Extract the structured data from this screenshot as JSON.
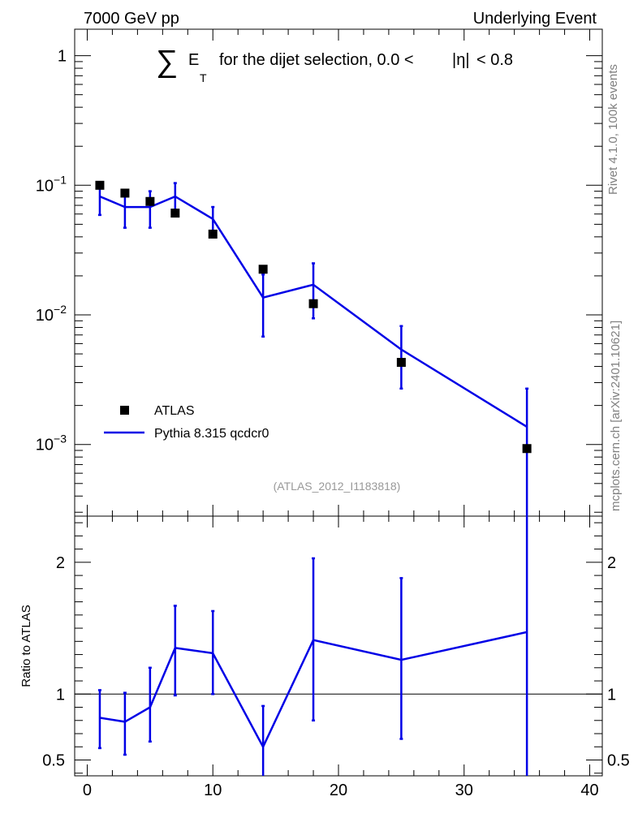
{
  "header": {
    "left": "7000 GeV pp",
    "right": "Underlying Event"
  },
  "side_labels": {
    "rivet": "Rivet 4.1.0,  100k events",
    "mcplots": "mcplots.cern.ch [arXiv:2401.10621]"
  },
  "chart_data": [
    {
      "type": "scatter",
      "panel": "main",
      "title_sum_symbol": "∑",
      "title_var": "E",
      "title_sub": "T",
      "title_rest": "for the dijet selection, 0.0 <",
      "title_eta": "|η|",
      "title_end": "< 0.8",
      "watermark": "(ATLAS_2012_I1183818)",
      "yscale": "log",
      "ylim": [
        0.00028,
        1.6
      ],
      "xlim": [
        -1,
        41
      ],
      "y_tick_labels": [
        {
          "value": 1,
          "base": "1",
          "exp": ""
        },
        {
          "value": 0.1,
          "base": "10",
          "exp": "−1"
        },
        {
          "value": 0.01,
          "base": "10",
          "exp": "−2"
        },
        {
          "value": 0.001,
          "base": "10",
          "exp": "−3"
        }
      ],
      "legend_position": "lower-left",
      "series": [
        {
          "name": "ATLAS",
          "style": "markers",
          "color": "#000000",
          "x": [
            1,
            3,
            5,
            7,
            10,
            14,
            18,
            25,
            35
          ],
          "y": [
            0.1,
            0.087,
            0.075,
            0.061,
            0.042,
            0.0225,
            0.0122,
            0.0043,
            0.00093
          ]
        },
        {
          "name": "Pythia 8.315 qcdcr0",
          "style": "line",
          "color": "#0000e6",
          "x": [
            1,
            3,
            5,
            7,
            10,
            14,
            18,
            25,
            35
          ],
          "y": [
            0.082,
            0.068,
            0.068,
            0.082,
            0.055,
            0.0136,
            0.0171,
            0.0054,
            0.00137
          ],
          "yerr_low": [
            0.059,
            0.047,
            0.047,
            0.061,
            0.042,
            0.0068,
            0.0094,
            0.0027,
            0.00022
          ],
          "yerr_high": [
            0.1,
            0.087,
            0.09,
            0.104,
            0.068,
            0.0205,
            0.025,
            0.0082,
            0.0027
          ]
        }
      ]
    },
    {
      "type": "line",
      "panel": "ratio",
      "ylabel": "Ratio to ATLAS",
      "ylim": [
        0.38,
        2.35
      ],
      "xlim": [
        -1,
        41
      ],
      "y_tick_labels": [
        {
          "value": 0.5,
          "label": "0.5"
        },
        {
          "value": 1,
          "label": "1"
        },
        {
          "value": 2,
          "label": "2"
        }
      ],
      "x_tick_labels": [
        {
          "value": 0,
          "label": "0"
        },
        {
          "value": 10,
          "label": "10"
        },
        {
          "value": 20,
          "label": "20"
        },
        {
          "value": 30,
          "label": "30"
        },
        {
          "value": 40,
          "label": "40"
        }
      ],
      "reference_line": 1,
      "series": [
        {
          "name": "Pythia 8.315 qcdcr0 / ATLAS",
          "color": "#0000e6",
          "x": [
            1,
            3,
            5,
            7,
            10,
            14,
            18,
            25,
            35
          ],
          "y": [
            0.82,
            0.79,
            0.9,
            1.35,
            1.31,
            0.6,
            1.41,
            1.26,
            1.47
          ],
          "yerr_low": [
            0.59,
            0.54,
            0.64,
            0.99,
            1.0,
            0.3,
            0.8,
            0.66,
            0.3
          ],
          "yerr_high": [
            1.03,
            1.01,
            1.2,
            1.67,
            1.63,
            0.91,
            2.03,
            1.88,
            2.35
          ]
        }
      ]
    }
  ]
}
